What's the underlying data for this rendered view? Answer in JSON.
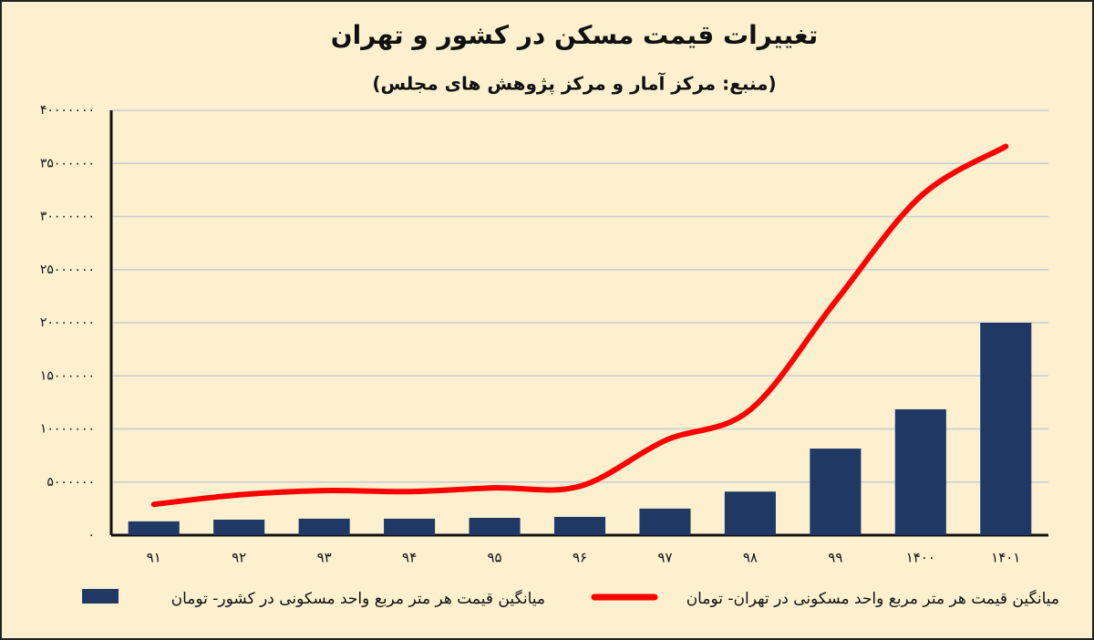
{
  "chart_data": {
    "type": "bar_line",
    "title": "تغییرات قیمت مسکن در کشور و تهران",
    "subtitle": "(منبع: مرکز آمار و مرکز پژوهش های مجلس)",
    "categories": [
      "۹۱",
      "۹۲",
      "۹۳",
      "۹۴",
      "۹۵",
      "۹۶",
      "۹۷",
      "۹۸",
      "۹۹",
      "۱۴۰۰",
      "۱۴۰۱"
    ],
    "series": [
      {
        "name": "میانگین قیمت هر متر مربع واحد مسکونی در کشور- تومان",
        "type": "bar",
        "color": "#1f3864",
        "values": [
          1300000,
          1460000,
          1550000,
          1550000,
          1630000,
          1720000,
          2500000,
          4100000,
          8150000,
          11850000,
          20000000
        ]
      },
      {
        "name": "میانگین قیمت هر متر مربع واحد مسکونی در تهران- تومان",
        "type": "line",
        "color": "#ff0000",
        "values": [
          2900000,
          3800000,
          4200000,
          4100000,
          4450000,
          4600000,
          8900000,
          11800000,
          22000000,
          31900000,
          36600000
        ]
      }
    ],
    "ylim": [
      0,
      40000000
    ],
    "yticks": [
      {
        "value": 0,
        "label": "۰"
      },
      {
        "value": 5000000,
        "label": "۵۰۰۰۰۰۰"
      },
      {
        "value": 10000000,
        "label": "۱۰۰۰۰۰۰۰"
      },
      {
        "value": 15000000,
        "label": "۱۵۰۰۰۰۰۰"
      },
      {
        "value": 20000000,
        "label": "۲۰۰۰۰۰۰۰"
      },
      {
        "value": 25000000,
        "label": "۲۵۰۰۰۰۰۰"
      },
      {
        "value": 30000000,
        "label": "۳۰۰۰۰۰۰۰"
      },
      {
        "value": 35000000,
        "label": "۳۵۰۰۰۰۰۰"
      },
      {
        "value": 40000000,
        "label": "۴۰۰۰۰۰۰۰"
      }
    ],
    "grid": true
  }
}
